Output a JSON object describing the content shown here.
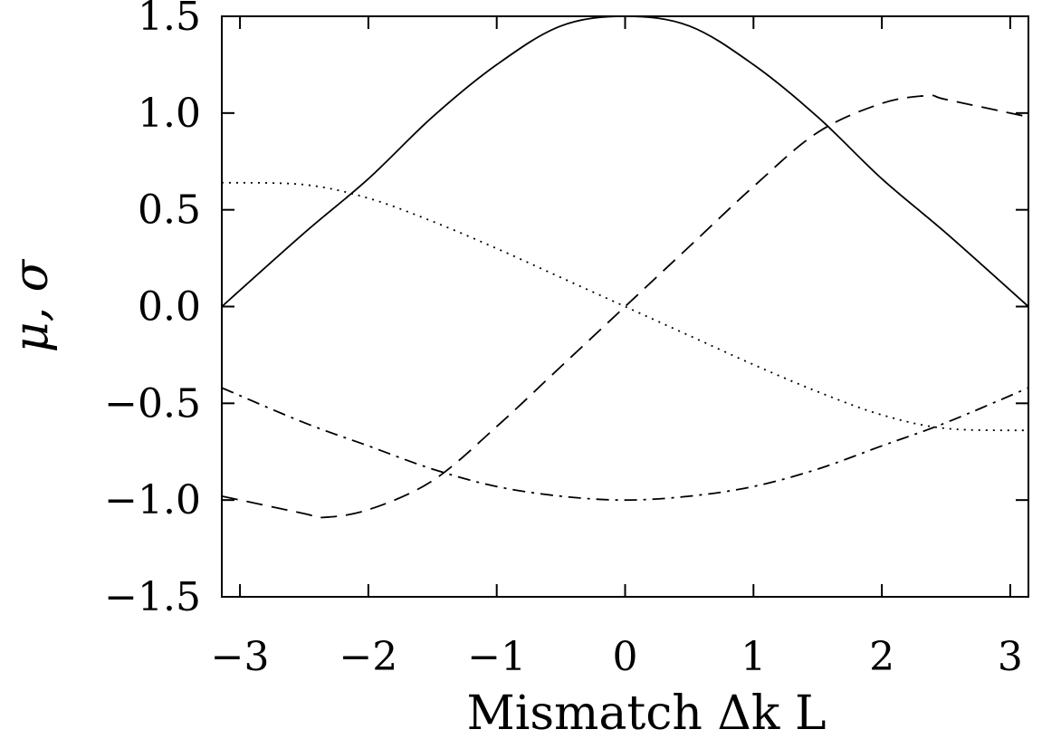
{
  "chart_data": {
    "type": "line",
    "xlabel": "Mismatch Δk L",
    "ylabel": "μ, σ",
    "xlim": [
      -3.14159,
      3.14159
    ],
    "ylim": [
      -1.5,
      1.5
    ],
    "x_ticks": [
      -3,
      -2,
      -1,
      0,
      1,
      2,
      3
    ],
    "x_tick_labels": [
      "−3",
      "−2",
      "−1",
      "0",
      "1",
      "2",
      "3"
    ],
    "y_ticks": [
      1.5,
      1.0,
      0.5,
      0.0,
      -0.5,
      -1.0,
      -1.5
    ],
    "y_tick_labels": [
      "1.5",
      "1.0",
      "0.5",
      "0.0",
      "−0.5",
      "−1.0",
      "−1.5"
    ],
    "grid": false,
    "series": [
      {
        "style": "solid",
        "x": [
          -3.14159,
          -2.5,
          -2.0,
          -1.5,
          -1.0,
          -0.5,
          0.0,
          0.5,
          1.0,
          1.5,
          2.0,
          2.5,
          3.14159
        ],
        "values": [
          0.0,
          0.38,
          0.66,
          0.98,
          1.25,
          1.45,
          1.5,
          1.45,
          1.25,
          0.98,
          0.66,
          0.38,
          0.0
        ]
      },
      {
        "style": "dashed",
        "x": [
          -3.14159,
          -2.5,
          -2.36,
          -2.0,
          -1.5,
          -1.0,
          -0.5,
          0.0,
          0.5,
          1.0,
          1.5,
          2.0,
          2.36,
          2.5,
          3.14159
        ],
        "values": [
          -0.98,
          -1.07,
          -1.09,
          -1.05,
          -0.9,
          -0.62,
          -0.31,
          0.0,
          0.31,
          0.62,
          0.9,
          1.05,
          1.09,
          1.07,
          0.98
        ]
      },
      {
        "style": "dotted",
        "x": [
          -3.14159,
          -2.5,
          -2.0,
          -1.5,
          -1.0,
          -0.5,
          0.0,
          0.5,
          1.0,
          1.5,
          2.0,
          2.5,
          3.14159
        ],
        "values": [
          0.64,
          0.63,
          0.56,
          0.44,
          0.3,
          0.15,
          0.0,
          -0.15,
          -0.3,
          -0.44,
          -0.56,
          -0.63,
          -0.64
        ]
      },
      {
        "style": "dashdot",
        "x": [
          -3.14159,
          -2.5,
          -2.0,
          -1.5,
          -1.0,
          -0.5,
          0.0,
          0.5,
          1.0,
          1.5,
          2.0,
          2.5,
          3.14159
        ],
        "values": [
          -0.42,
          -0.6,
          -0.72,
          -0.84,
          -0.93,
          -0.98,
          -1.0,
          -0.98,
          -0.93,
          -0.84,
          -0.72,
          -0.6,
          -0.42
        ]
      }
    ]
  }
}
